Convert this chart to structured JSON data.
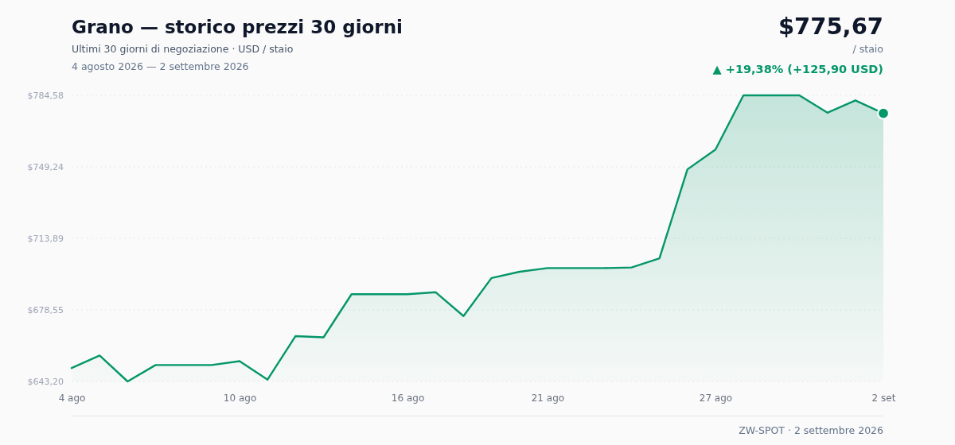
{
  "chart_data": {
    "type": "area",
    "title": "Grano — storico prezzi 30 giorni",
    "subtitle": "Ultimi 30 giorni di negoziazione · USD / staio",
    "annotations": [
      "4 agosto 2026 — 2 settembre 2026",
      "$775,67",
      "/ staio",
      "▲ +19,38% (+125,90 USD)",
      "ZW-SPOT · 2 settembre 2026"
    ],
    "x": [
      "2026-08-04",
      "2026-08-05",
      "2026-08-06",
      "2026-08-07",
      "2026-08-08",
      "2026-08-09",
      "2026-08-10",
      "2026-08-11",
      "2026-08-12",
      "2026-08-13",
      "2026-08-14",
      "2026-08-15",
      "2026-08-16",
      "2026-08-17",
      "2026-08-18",
      "2026-08-19",
      "2026-08-20",
      "2026-08-21",
      "2026-08-22",
      "2026-08-23",
      "2026-08-24",
      "2026-08-25",
      "2026-08-26",
      "2026-08-27",
      "2026-08-28",
      "2026-08-29",
      "2026-08-30",
      "2026-08-31",
      "2026-09-01",
      "2026-09-02"
    ],
    "series": [
      {
        "color": "#059669",
        "values": [
          649.8,
          656.0,
          643.2,
          651.3,
          651.3,
          651.3,
          653.2,
          644.1,
          665.6,
          665.0,
          686.3,
          686.3,
          686.3,
          687.3,
          675.5,
          694.3,
          697.4,
          699.2,
          699.2,
          699.2,
          699.5,
          704.0,
          748.0,
          757.8,
          784.58,
          784.58,
          784.58,
          776.0,
          782.1,
          775.7
        ]
      },
      {
        "type": "scatter",
        "color": "#059669",
        "marker": "circle",
        "x": [
          "2026-09-02"
        ],
        "values": [
          775.7
        ]
      }
    ],
    "xlim": [
      "2026-08-04",
      "2026-09-02"
    ],
    "xticks": [
      {
        "value": "2026-08-04",
        "label": "4 ago"
      },
      {
        "value": "2026-08-10",
        "label": "10 ago"
      },
      {
        "value": "2026-08-16",
        "label": "16 ago"
      },
      {
        "value": "2026-08-21",
        "label": "21 ago"
      },
      {
        "value": "2026-08-27",
        "label": "27 ago"
      },
      {
        "value": "2026-09-02",
        "label": "2 set"
      }
    ],
    "ylim": [
      643.2,
      784.58
    ],
    "yticks": [
      {
        "value": 643.2,
        "label": "$643,20"
      },
      {
        "value": 678.55,
        "label": "$678,55"
      },
      {
        "value": 713.89,
        "label": "$713,89"
      },
      {
        "value": 749.24,
        "label": "$749,24"
      },
      {
        "value": 784.58,
        "label": "$784,58"
      }
    ],
    "grid": "y"
  }
}
